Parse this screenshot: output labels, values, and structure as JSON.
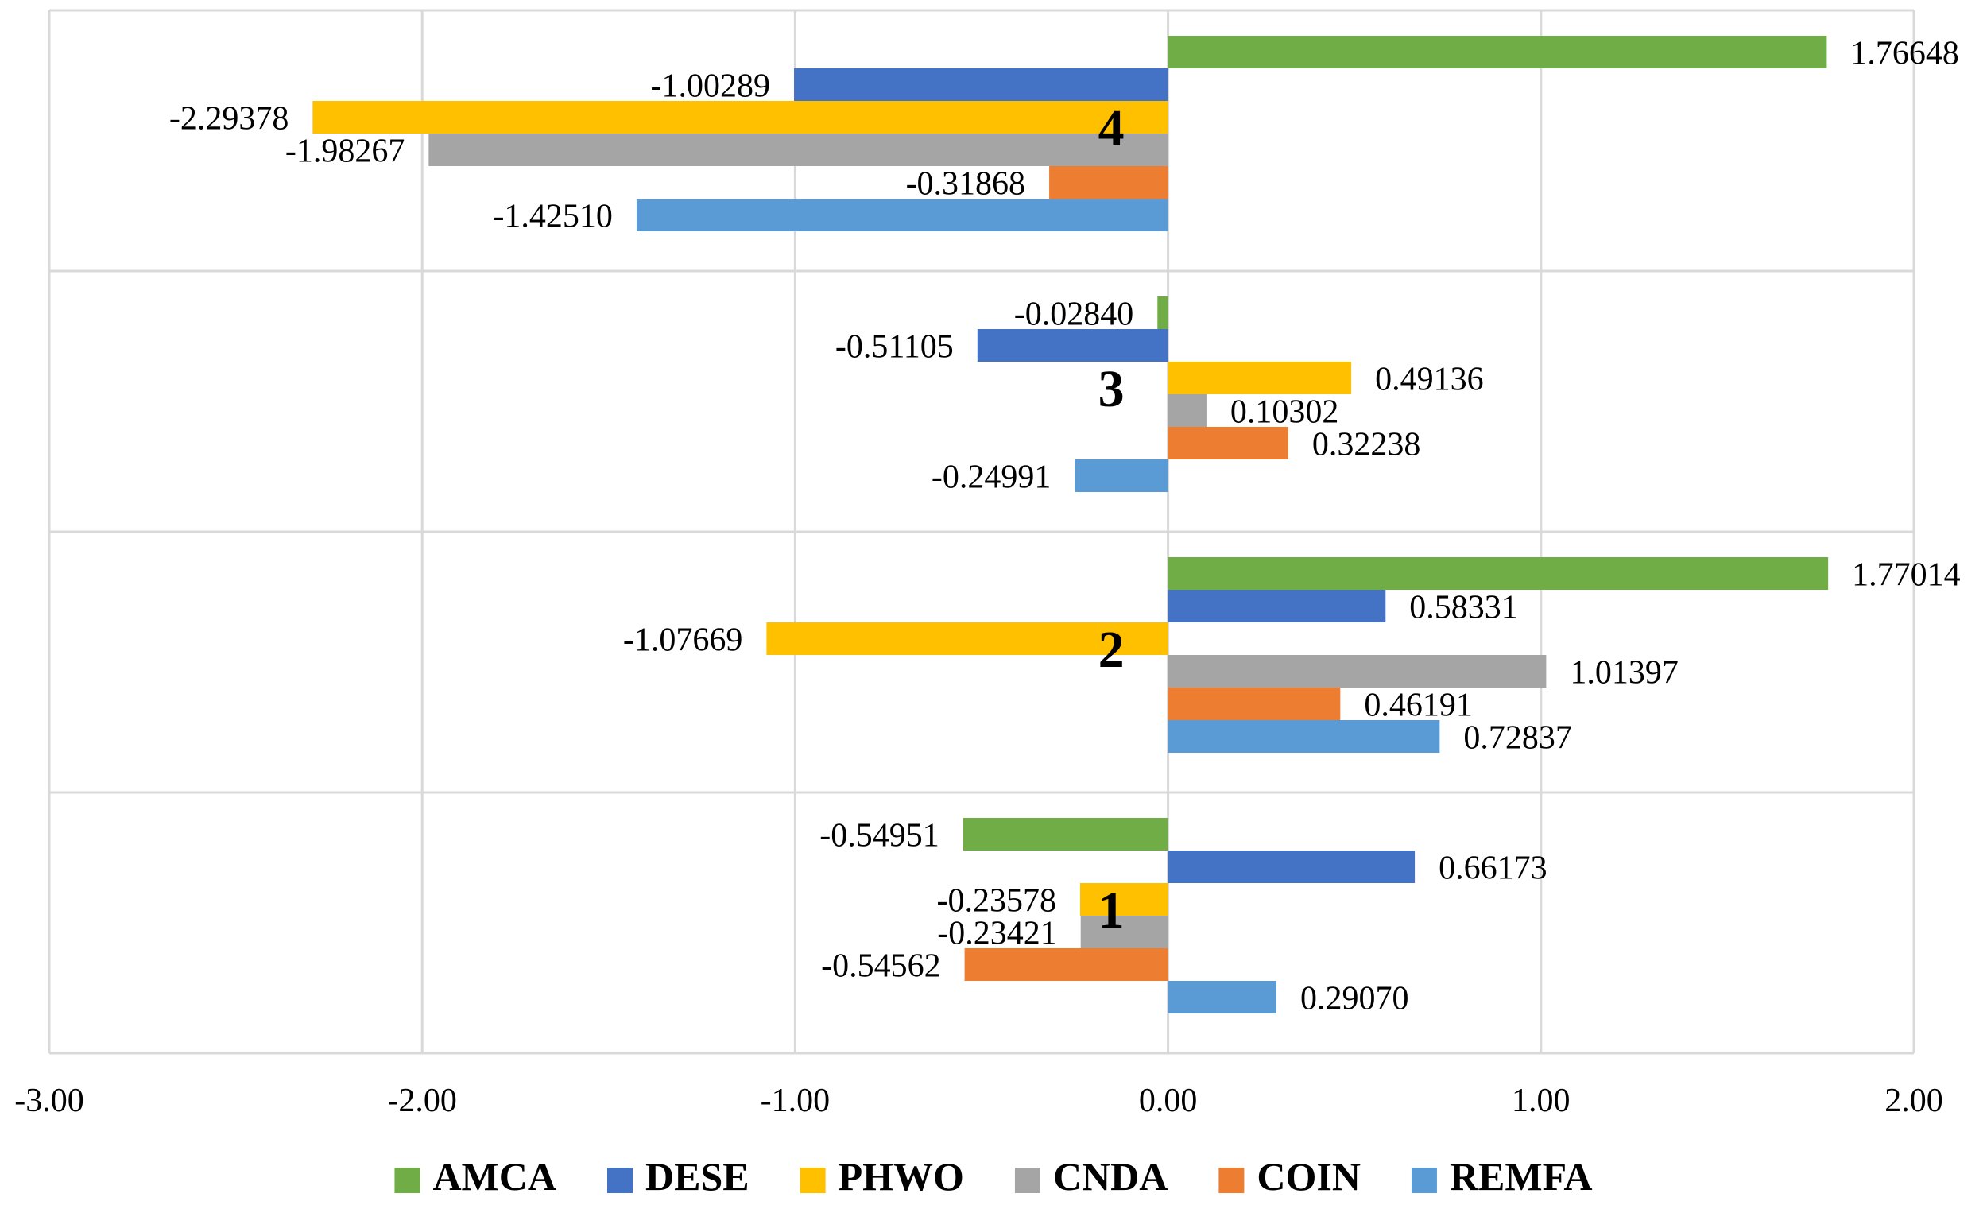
{
  "chart_data": {
    "type": "bar",
    "orientation": "horizontal",
    "title": "",
    "xlabel": "",
    "ylabel": "",
    "xlim": [
      -3,
      2
    ],
    "x_ticks": [
      -3,
      -2,
      -1,
      0,
      1,
      2
    ],
    "x_tick_labels": [
      "-3.00",
      "-2.00",
      "-1.00",
      "0.00",
      "1.00",
      "2.00"
    ],
    "grid": true,
    "legend_position": "bottom",
    "groups": [
      "4",
      "3",
      "2",
      "1"
    ],
    "series": [
      {
        "name": "AMCA",
        "color": "#70AD47",
        "values": [
          1.76648,
          -0.0284,
          1.77014,
          -0.54951
        ],
        "labels": [
          "1.76648",
          "-0.02840",
          "1.77014",
          "-0.54951"
        ]
      },
      {
        "name": "DESE",
        "color": "#4472C4",
        "values": [
          -1.00289,
          -0.51105,
          0.58331,
          0.66173
        ],
        "labels": [
          "-1.00289",
          "-0.51105",
          "0.58331",
          "0.66173"
        ]
      },
      {
        "name": "PHWO",
        "color": "#FFC000",
        "values": [
          -2.29378,
          0.49136,
          -1.07669,
          -0.23578
        ],
        "labels": [
          "-2.29378",
          "0.49136",
          "-1.07669",
          "-0.23578"
        ]
      },
      {
        "name": "CNDA",
        "color": "#A5A5A5",
        "values": [
          -1.98267,
          0.10302,
          1.01397,
          -0.23421
        ],
        "labels": [
          "-1.98267",
          "0.10302",
          "1.01397",
          "-0.23421"
        ]
      },
      {
        "name": "COIN",
        "color": "#ED7D31",
        "values": [
          -0.31868,
          0.32238,
          0.46191,
          -0.54562
        ],
        "labels": [
          "-0.31868",
          "0.32238",
          "0.46191",
          "-0.54562"
        ]
      },
      {
        "name": "REMFA",
        "color": "#5B9BD5",
        "values": [
          -1.4251,
          -0.24991,
          0.72837,
          0.2907
        ],
        "labels": [
          "-1.42510",
          "-0.24991",
          "0.72837",
          "0.29070"
        ]
      }
    ]
  }
}
